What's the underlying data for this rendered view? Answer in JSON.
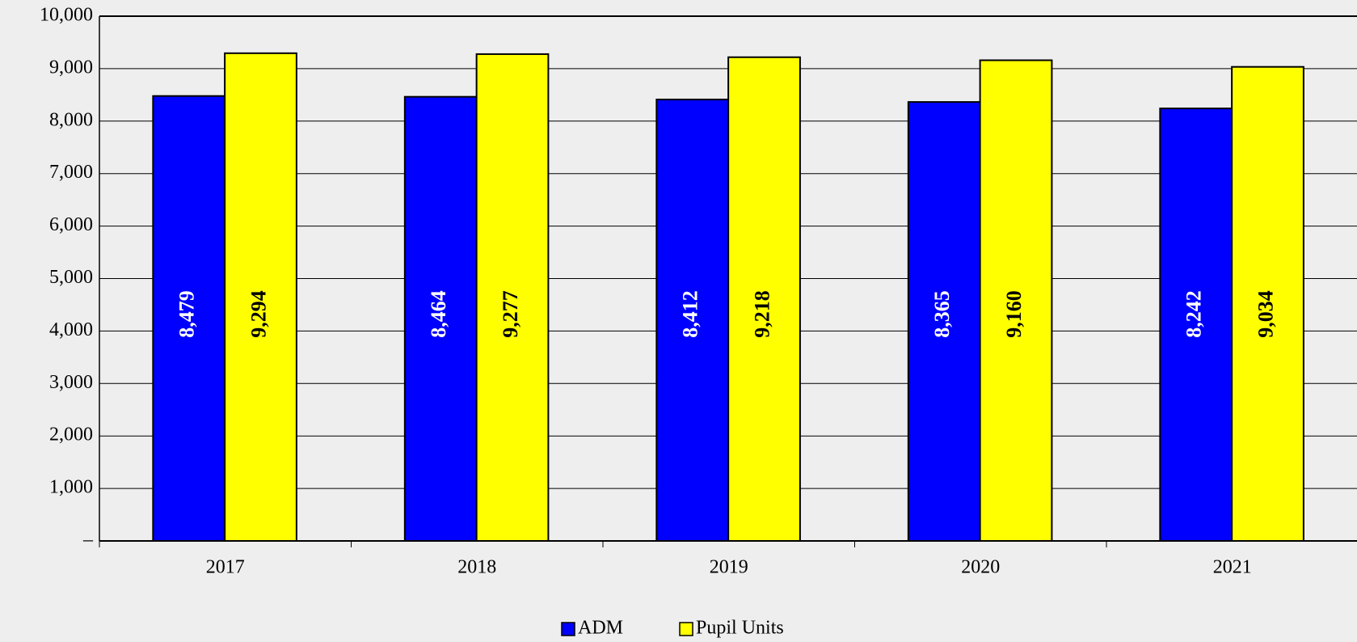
{
  "chart_data": {
    "type": "bar",
    "categories": [
      "2017",
      "2018",
      "2019",
      "2020",
      "2021"
    ],
    "series": [
      {
        "name": "ADM",
        "color": "#0000ff",
        "label_color": "#ffffff",
        "values": [
          8479,
          8464,
          8412,
          8365,
          8242
        ],
        "value_labels": [
          "8,479",
          "8,464",
          "8,412",
          "8,365",
          "8,242"
        ]
      },
      {
        "name": "Pupil Units",
        "color": "#ffff00",
        "label_color": "#000000",
        "values": [
          9294,
          9277,
          9218,
          9160,
          9034
        ],
        "value_labels": [
          "9,294",
          "9,277",
          "9,218",
          "9,160",
          "9,034"
        ]
      }
    ],
    "ylim": [
      0,
      10000
    ],
    "yticks": [
      {
        "value": 0,
        "label": "–"
      },
      {
        "value": 1000,
        "label": "1,000"
      },
      {
        "value": 2000,
        "label": "2,000"
      },
      {
        "value": 3000,
        "label": "3,000"
      },
      {
        "value": 4000,
        "label": "4,000"
      },
      {
        "value": 5000,
        "label": "5,000"
      },
      {
        "value": 6000,
        "label": "6,000"
      },
      {
        "value": 7000,
        "label": "7,000"
      },
      {
        "value": 8000,
        "label": "8,000"
      },
      {
        "value": 9000,
        "label": "9,000"
      },
      {
        "value": 10000,
        "label": "10,000"
      }
    ],
    "grid": true,
    "legend": "bottom"
  }
}
